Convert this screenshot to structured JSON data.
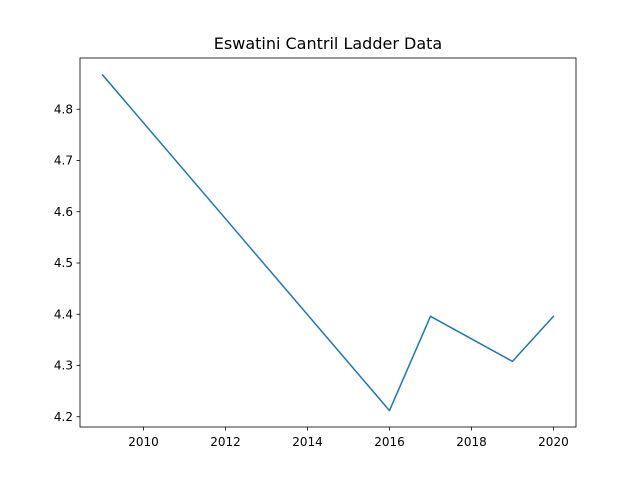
{
  "chart_data": {
    "type": "line",
    "title": "Eswatini Cantril Ladder Data",
    "xlabel": "",
    "ylabel": "",
    "x": [
      2009,
      2016,
      2017,
      2019,
      2020
    ],
    "series": [
      {
        "values": [
          4.867,
          4.212,
          4.396,
          4.308,
          4.396
        ],
        "color": "#1f77b4"
      }
    ],
    "xlim": [
      2008.45,
      2020.55
    ],
    "ylim": [
      4.18,
      4.9
    ],
    "xticks": [
      2010,
      2012,
      2014,
      2016,
      2018,
      2020
    ],
    "yticks": [
      4.2,
      4.3,
      4.4,
      4.5,
      4.6,
      4.7,
      4.8
    ],
    "grid": false,
    "legend": "none"
  }
}
